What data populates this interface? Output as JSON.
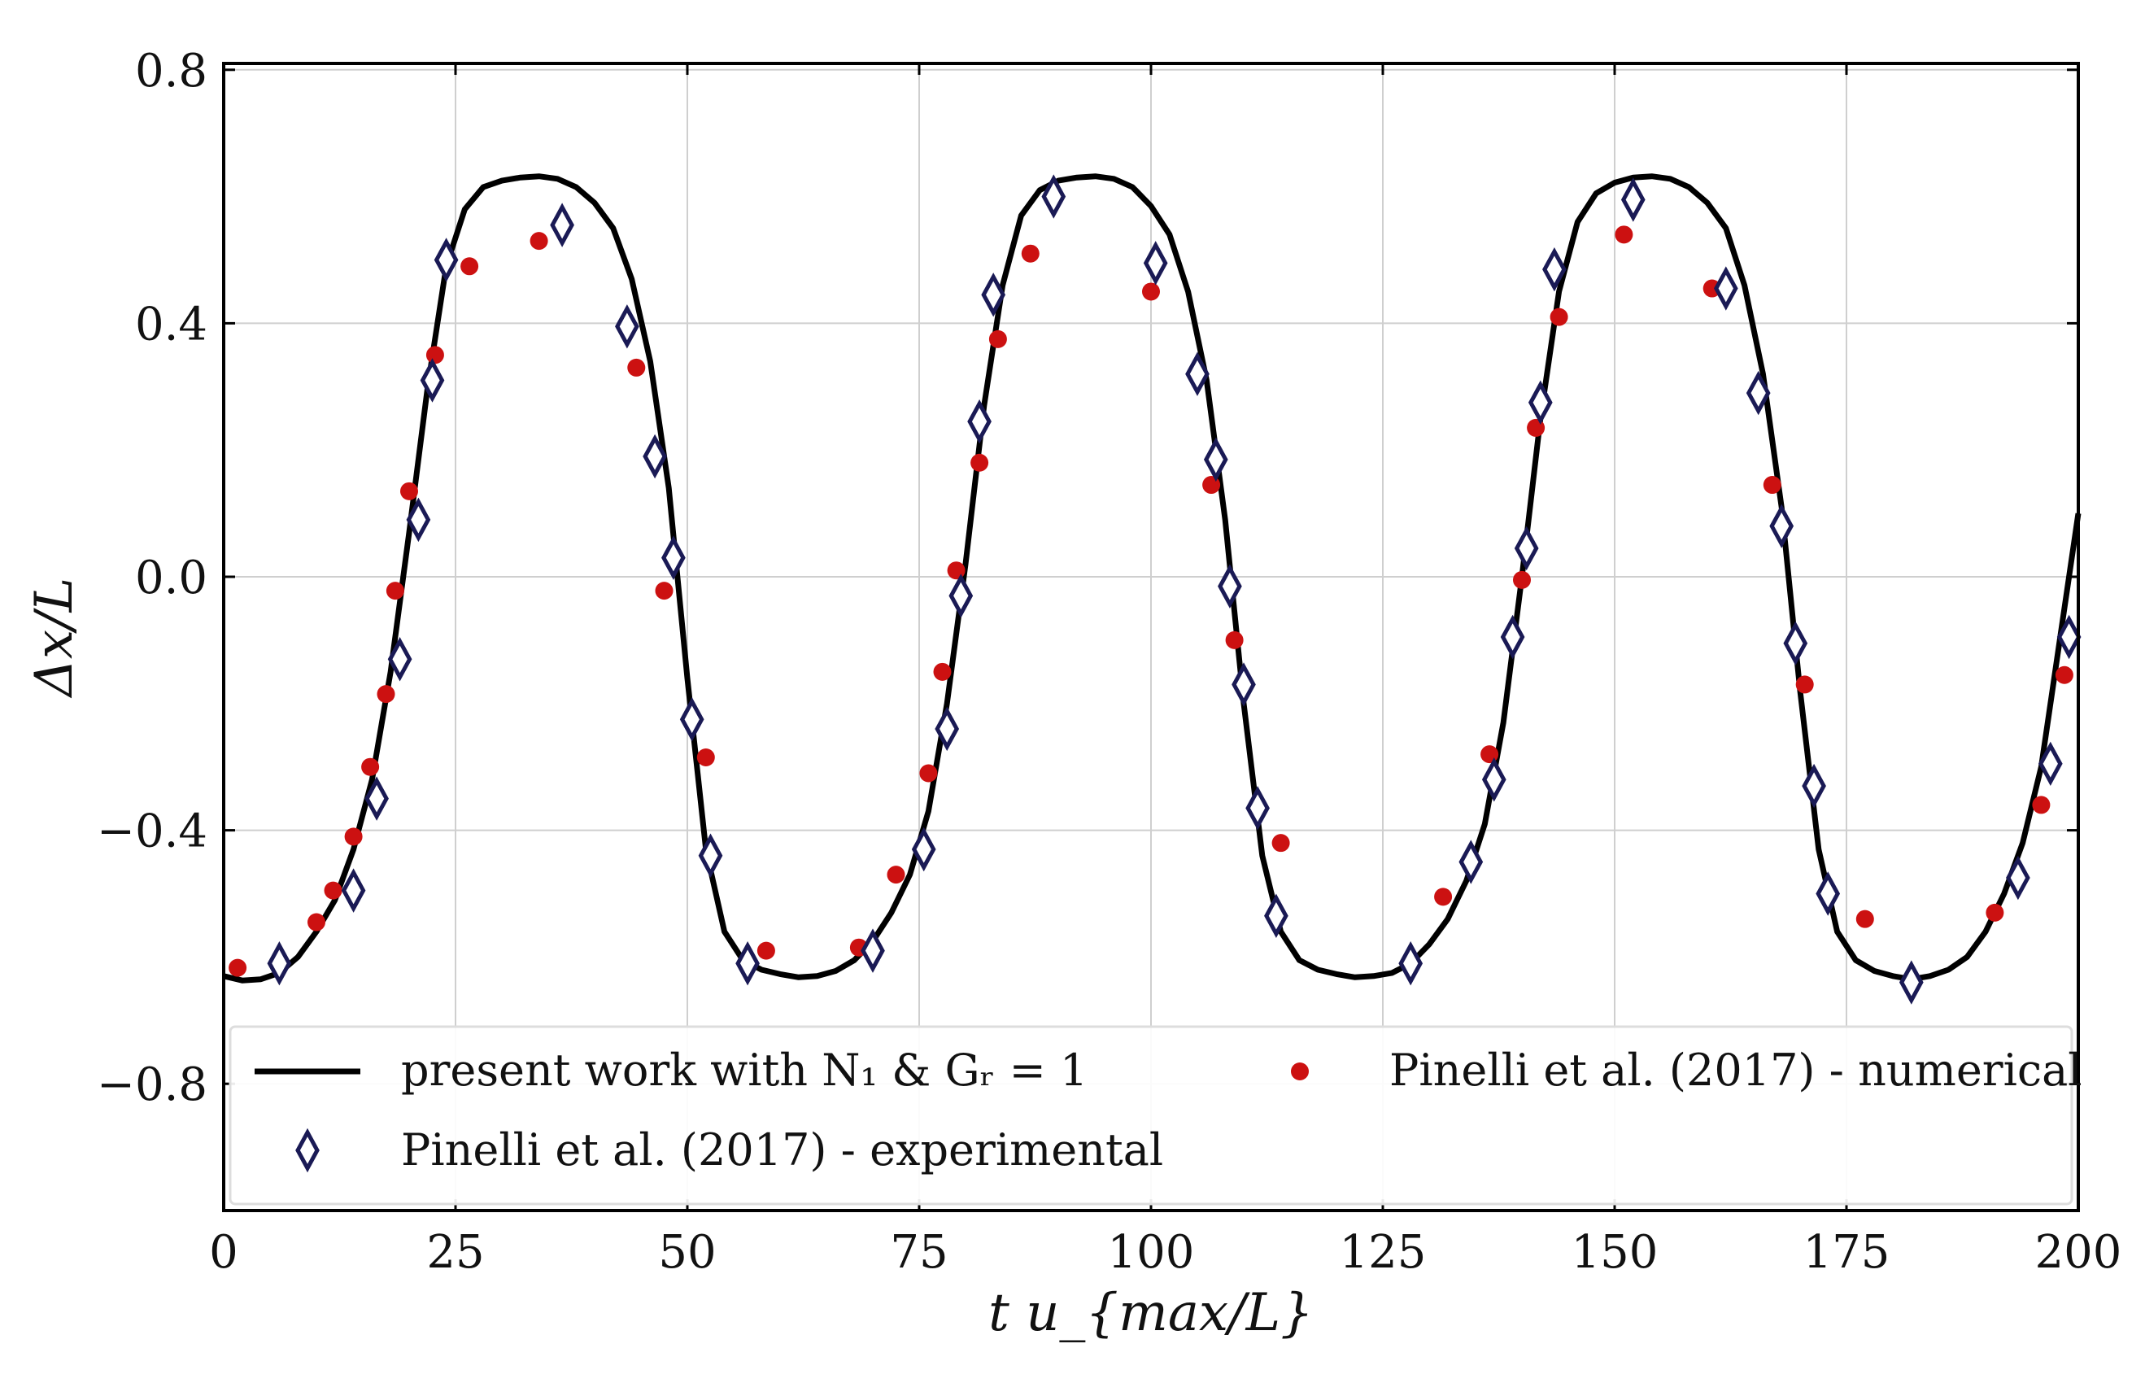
{
  "chart_data": {
    "type": "line",
    "title": "",
    "xlabel": "t u_{max/L}",
    "ylabel": "Δx/L",
    "xlim": [
      0,
      200
    ],
    "ylim": [
      -1.0,
      0.81
    ],
    "xticks": [
      0,
      25,
      50,
      75,
      100,
      125,
      150,
      175,
      200
    ],
    "xtick_labels": [
      "0",
      "25",
      "50",
      "75",
      "100",
      "125",
      "150",
      "175",
      "200"
    ],
    "yticks": [
      0.8,
      0.4,
      0.0,
      -0.4,
      -0.8
    ],
    "ytick_labels": [
      "0.8",
      "0.4",
      "0.0",
      "−0.4",
      "−0.8"
    ],
    "grid": true,
    "legend_position": "bottom",
    "series": [
      {
        "name": "present work with N₁ & Gᵣ = 1",
        "kind": "line",
        "color": "#000000",
        "x": [
          0,
          2,
          4,
          6,
          8,
          10,
          12,
          14,
          16,
          18,
          20,
          22,
          24,
          26,
          28,
          30,
          32,
          34,
          36,
          38,
          40,
          42,
          44,
          46,
          48,
          50,
          52,
          54,
          56,
          58,
          60,
          62,
          64,
          66,
          68,
          70,
          72,
          74,
          76,
          78,
          80,
          82,
          84,
          86,
          88,
          90,
          92,
          94,
          96,
          98,
          100,
          102,
          104,
          106,
          108,
          110,
          112,
          114,
          116,
          118,
          120,
          122,
          124,
          126,
          128,
          130,
          132,
          134,
          136,
          138,
          140,
          142,
          144,
          146,
          148,
          150,
          152,
          154,
          156,
          158,
          160,
          162,
          164,
          166,
          168,
          170,
          172,
          174,
          176,
          178,
          180,
          182,
          184,
          186,
          188,
          190,
          192,
          194,
          196,
          198,
          200
        ],
        "y": [
          -0.63,
          -0.637,
          -0.635,
          -0.625,
          -0.6,
          -0.56,
          -0.51,
          -0.43,
          -0.32,
          -0.15,
          0.07,
          0.3,
          0.49,
          0.58,
          0.615,
          0.625,
          0.63,
          0.632,
          0.628,
          0.615,
          0.59,
          0.55,
          0.47,
          0.34,
          0.14,
          -0.16,
          -0.43,
          -0.56,
          -0.605,
          -0.62,
          -0.627,
          -0.632,
          -0.63,
          -0.622,
          -0.605,
          -0.575,
          -0.53,
          -0.47,
          -0.37,
          -0.2,
          0.02,
          0.27,
          0.46,
          0.57,
          0.61,
          0.625,
          0.63,
          0.632,
          0.628,
          0.615,
          0.585,
          0.54,
          0.45,
          0.31,
          0.09,
          -0.2,
          -0.44,
          -0.56,
          -0.605,
          -0.62,
          -0.627,
          -0.632,
          -0.63,
          -0.625,
          -0.61,
          -0.58,
          -0.54,
          -0.48,
          -0.39,
          -0.23,
          0.0,
          0.25,
          0.45,
          0.56,
          0.605,
          0.622,
          0.63,
          0.632,
          0.628,
          0.615,
          0.59,
          0.55,
          0.46,
          0.32,
          0.11,
          -0.18,
          -0.43,
          -0.56,
          -0.605,
          -0.622,
          -0.63,
          -0.635,
          -0.63,
          -0.62,
          -0.6,
          -0.56,
          -0.5,
          -0.42,
          -0.3,
          -0.1,
          0.1
        ]
      },
      {
        "name": "Pinelli et al. (2017) - numerical",
        "kind": "scatter",
        "marker": "circle",
        "color": "#cc1111",
        "x": [
          1.5,
          10,
          11.8,
          14,
          15.8,
          17.5,
          18.5,
          20,
          22.8,
          26.5,
          34,
          44.5,
          47.5,
          52,
          58.5,
          68.5,
          72.5,
          76,
          77.5,
          79,
          81.5,
          83.5,
          87,
          100,
          106.5,
          109,
          114,
          131.5,
          136.5,
          140,
          141.5,
          144,
          151,
          160.5,
          167,
          170.5,
          177,
          191,
          196,
          198.5
        ],
        "y": [
          -0.617,
          -0.545,
          -0.495,
          -0.41,
          -0.3,
          -0.185,
          -0.022,
          0.135,
          0.35,
          0.49,
          0.53,
          0.33,
          -0.022,
          -0.285,
          -0.59,
          -0.585,
          -0.47,
          -0.31,
          -0.15,
          0.01,
          0.18,
          0.375,
          0.51,
          0.45,
          0.145,
          -0.1,
          -0.42,
          -0.505,
          -0.28,
          -0.005,
          0.235,
          0.41,
          0.54,
          0.455,
          0.145,
          -0.17,
          -0.54,
          -0.53,
          -0.36,
          -0.155
        ]
      },
      {
        "name": "Pinelli et al. (2017) - experimental",
        "kind": "scatter",
        "marker": "diamond",
        "color": "#1a1a55",
        "x": [
          6,
          14,
          16.5,
          19,
          21,
          22.5,
          24,
          36.5,
          43.5,
          46.5,
          48.5,
          50.5,
          52.5,
          56.5,
          70,
          75.5,
          78,
          79.5,
          81.5,
          83,
          89.5,
          100.5,
          105,
          107,
          108.5,
          110,
          111.5,
          113.5,
          128,
          134.5,
          137,
          139,
          140.5,
          142,
          143.5,
          152,
          162,
          165.5,
          168,
          169.5,
          171.5,
          173,
          182,
          193.5,
          197,
          199
        ],
        "y": [
          -0.61,
          -0.495,
          -0.35,
          -0.13,
          0.09,
          0.31,
          0.5,
          0.555,
          0.395,
          0.19,
          0.03,
          -0.225,
          -0.44,
          -0.61,
          -0.59,
          -0.43,
          -0.24,
          -0.03,
          0.245,
          0.445,
          0.6,
          0.495,
          0.32,
          0.185,
          -0.015,
          -0.17,
          -0.365,
          -0.535,
          -0.61,
          -0.45,
          -0.32,
          -0.095,
          0.045,
          0.275,
          0.485,
          0.595,
          0.455,
          0.29,
          0.08,
          -0.105,
          -0.33,
          -0.5,
          -0.64,
          -0.475,
          -0.295,
          -0.095
        ]
      }
    ]
  }
}
